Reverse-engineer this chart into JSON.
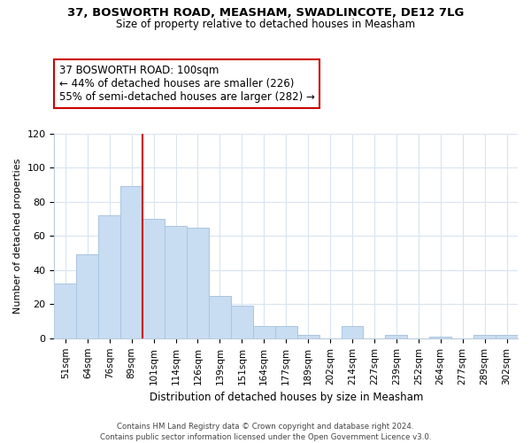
{
  "title1": "37, BOSWORTH ROAD, MEASHAM, SWADLINCOTE, DE12 7LG",
  "title2": "Size of property relative to detached houses in Measham",
  "xlabel": "Distribution of detached houses by size in Measham",
  "ylabel": "Number of detached properties",
  "categories": [
    "51sqm",
    "64sqm",
    "76sqm",
    "89sqm",
    "101sqm",
    "114sqm",
    "126sqm",
    "139sqm",
    "151sqm",
    "164sqm",
    "177sqm",
    "189sqm",
    "202sqm",
    "214sqm",
    "227sqm",
    "239sqm",
    "252sqm",
    "264sqm",
    "277sqm",
    "289sqm",
    "302sqm"
  ],
  "values": [
    32,
    49,
    72,
    89,
    70,
    66,
    65,
    25,
    19,
    7,
    7,
    2,
    0,
    7,
    0,
    2,
    0,
    1,
    0,
    2,
    2
  ],
  "bar_color": "#c8ddf2",
  "bar_edge_color": "#aac4e0",
  "vline_color": "#cc0000",
  "annotation_line1": "37 BOSWORTH ROAD: 100sqm",
  "annotation_line2": "← 44% of detached houses are smaller (226)",
  "annotation_line3": "55% of semi-detached houses are larger (282) →",
  "ylim": [
    0,
    120
  ],
  "yticks": [
    0,
    20,
    40,
    60,
    80,
    100,
    120
  ],
  "footer_text": "Contains HM Land Registry data © Crown copyright and database right 2024.\nContains public sector information licensed under the Open Government Licence v3.0.",
  "bg_color": "#ffffff",
  "grid_color": "#d8e4f0"
}
